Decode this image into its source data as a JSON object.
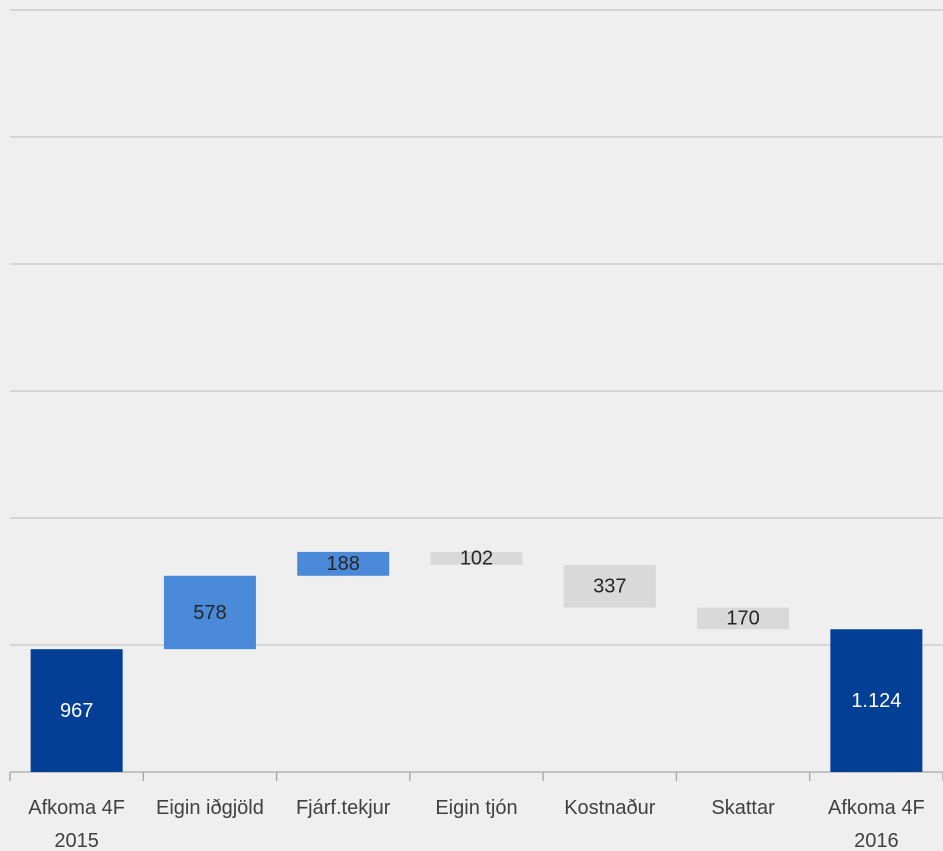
{
  "chart_data": {
    "type": "waterfall",
    "categories": [
      "Afkoma 4F 2015",
      "Eigin iðgjöld",
      "Fjárf.tekjur",
      "Eigin tjón",
      "Kostnaður",
      "Skattar",
      "Afkoma 4F 2016"
    ],
    "values": [
      967,
      578,
      188,
      -102,
      -337,
      -170,
      1124
    ],
    "value_labels": [
      "967",
      "578",
      "188",
      "102",
      "337",
      "170",
      "1.124"
    ],
    "is_total": [
      true,
      false,
      false,
      false,
      false,
      false,
      true
    ],
    "colors": [
      "#023f95",
      "#4a8ad8",
      "#4a8ad8",
      "#d9d9d9",
      "#d9d9d9",
      "#d9d9d9",
      "#023f95"
    ],
    "ylim": [
      0,
      6000
    ],
    "yticks": [
      0,
      1000,
      2000,
      3000,
      4000,
      5000,
      6000
    ],
    "grid": true
  }
}
